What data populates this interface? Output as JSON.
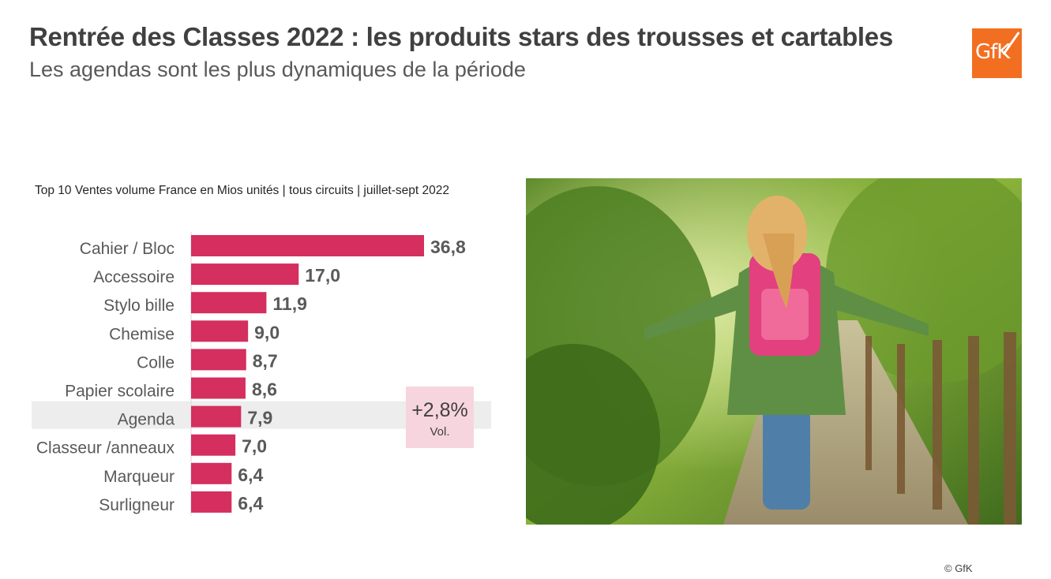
{
  "header": {
    "title": "Rentrée des Classes 2022 : les produits stars des trousses et cartables",
    "subtitle": "Les agendas sont les plus dynamiques de la période"
  },
  "logo": {
    "text": "GfK",
    "color": "#f26f22"
  },
  "chart_data": {
    "type": "bar",
    "orientation": "horizontal",
    "title": "Top 10 Ventes volume France en Mios unités | tous circuits | juillet-sept 2022",
    "categories": [
      "Cahier / Bloc",
      "Accessoire",
      "Stylo bille",
      "Chemise",
      "Colle",
      "Papier scolaire",
      "Agenda",
      "Classeur /anneaux",
      "Marqueur",
      "Surligneur"
    ],
    "values": [
      36.8,
      17.0,
      11.9,
      9.0,
      8.7,
      8.6,
      7.9,
      7.0,
      6.4,
      6.4
    ],
    "value_labels": [
      "36,8",
      "17,0",
      "11,9",
      "9,0",
      "8,7",
      "8,6",
      "7,9",
      "7,0",
      "6,4",
      "6,4"
    ],
    "highlight_category": "Agenda",
    "annotation": {
      "value": "+2,8%",
      "label": "Vol."
    },
    "bar_color": "#d42f5e",
    "highlight_band_color": "#ededed",
    "annotation_color": "#f7d5de",
    "xlim": [
      0,
      36.8
    ],
    "grid": false
  },
  "photo": {
    "alt": "girl with pink school backpack walking on a garden path"
  },
  "footer": {
    "copyright": "© GfK"
  }
}
